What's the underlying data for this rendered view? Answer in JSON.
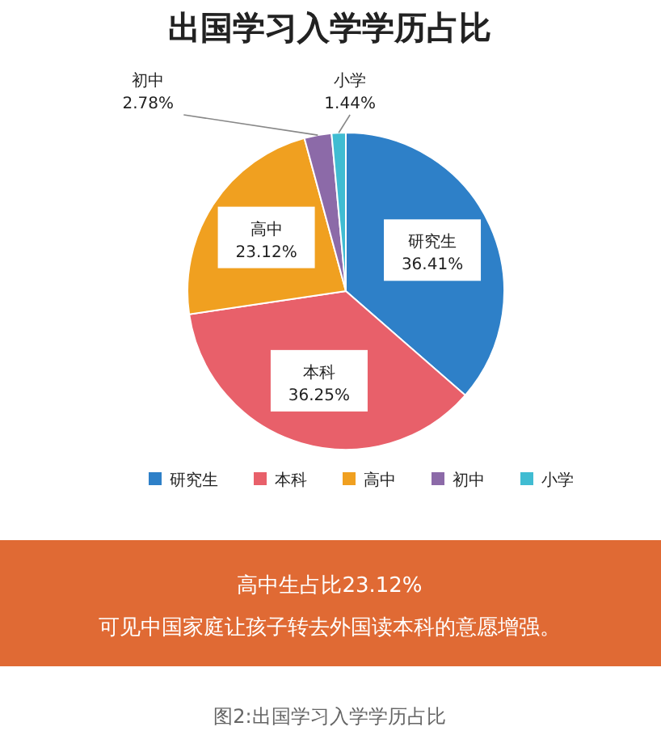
{
  "chart_data": {
    "type": "pie",
    "title": "出国学习入学学历占比",
    "categories": [
      "研究生",
      "本科",
      "高中",
      "初中",
      "小学"
    ],
    "values": [
      36.41,
      36.25,
      23.12,
      2.78,
      1.44
    ],
    "value_labels": [
      "36.41%",
      "36.25%",
      "23.12%",
      "2.78%",
      "1.44%"
    ],
    "colors": [
      "#2e80c8",
      "#e8606a",
      "#f0a020",
      "#8c6aa8",
      "#40bcd2"
    ],
    "legend": "bottom",
    "annotations": [
      "高中生占比23.12%",
      "可见中国家庭让孩子转去外国读本科的意愿增强。",
      "图2:出国学习入学学历占比"
    ]
  }
}
